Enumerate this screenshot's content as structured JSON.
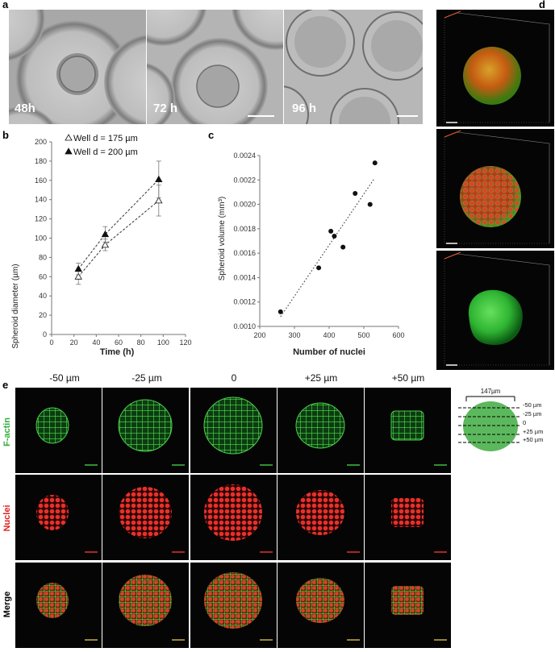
{
  "panel_labels": {
    "a": "a",
    "b": "b",
    "c": "c",
    "d": "d",
    "e": "e"
  },
  "panel_a": {
    "time_labels": [
      "48h",
      "72 h",
      "96 h"
    ]
  },
  "chart_data": [
    {
      "id": "b",
      "type": "line",
      "xlabel": "Time (h)",
      "ylabel": "Spheroid diameter (µm)",
      "xlim": [
        0,
        120
      ],
      "ylim": [
        0,
        200
      ],
      "xticks": [
        0,
        20,
        40,
        60,
        80,
        100,
        120
      ],
      "yticks": [
        0,
        20,
        40,
        60,
        80,
        100,
        120,
        140,
        160,
        180,
        200
      ],
      "legend_position": "top-left",
      "series": [
        {
          "name": "Well d = 175 µm",
          "marker": "open-triangle",
          "x": [
            24,
            48,
            96
          ],
          "y": [
            60,
            93,
            139
          ],
          "err": [
            8,
            6,
            16
          ]
        },
        {
          "name": "Well d = 200 µm",
          "marker": "filled-triangle",
          "x": [
            24,
            48,
            96
          ],
          "y": [
            68,
            104,
            161
          ],
          "err": [
            6,
            8,
            19
          ]
        }
      ]
    },
    {
      "id": "c",
      "type": "scatter",
      "xlabel": "Number of nuclei",
      "ylabel": "Spheroid volume (mm³)",
      "xlim": [
        200,
        600
      ],
      "ylim": [
        0.001,
        0.0024
      ],
      "xticks": [
        200,
        300,
        400,
        500,
        600
      ],
      "yticks": [
        "0.0010",
        "0.0012",
        "0.0014",
        "0.0016",
        "0.0018",
        "0.0020",
        "0.0022",
        "0.0024"
      ],
      "x": [
        260,
        370,
        405,
        415,
        440,
        475,
        518,
        532
      ],
      "y": [
        0.00112,
        0.00148,
        0.00178,
        0.00174,
        0.00165,
        0.00209,
        0.002,
        0.00234
      ],
      "trendline": {
        "x": [
          260,
          530
        ],
        "y": [
          0.00108,
          0.00221
        ],
        "style": "dotted"
      }
    }
  ],
  "panel_e": {
    "columns": [
      "-50 µm",
      "-25 µm",
      "0",
      "+25 µm",
      "+50 µm"
    ],
    "rows": [
      "F-actin",
      "Nuclei",
      "Merge"
    ],
    "row_colors": {
      "F-actin": "#2fae3a",
      "Nuclei": "#e02020",
      "Merge": "#000000"
    },
    "diagram": {
      "diameter": "147µm",
      "levels": [
        "-50 µm",
        "-25 µm",
        "0",
        "+25 µm",
        "+50 µm"
      ]
    }
  }
}
